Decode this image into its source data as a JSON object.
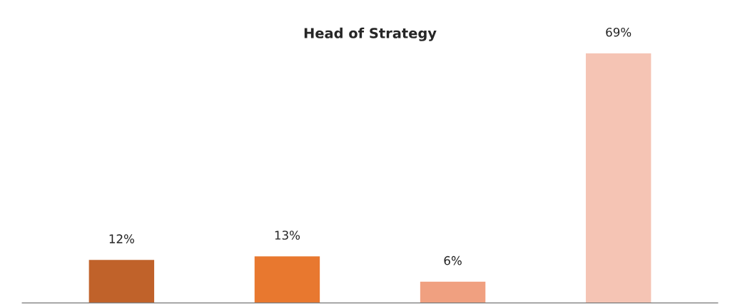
{
  "chart_data": {
    "type": "bar",
    "title": "Head of Strategy",
    "categories": [
      null,
      null,
      null,
      null
    ],
    "values": [
      12,
      13,
      6,
      69
    ],
    "value_labels": [
      "12%",
      "13%",
      "6%",
      "69%"
    ],
    "colors": [
      "#c0622a",
      "#e8782f",
      "#f0a080",
      "#f5c4b4"
    ],
    "grid": false,
    "legend": false
  }
}
